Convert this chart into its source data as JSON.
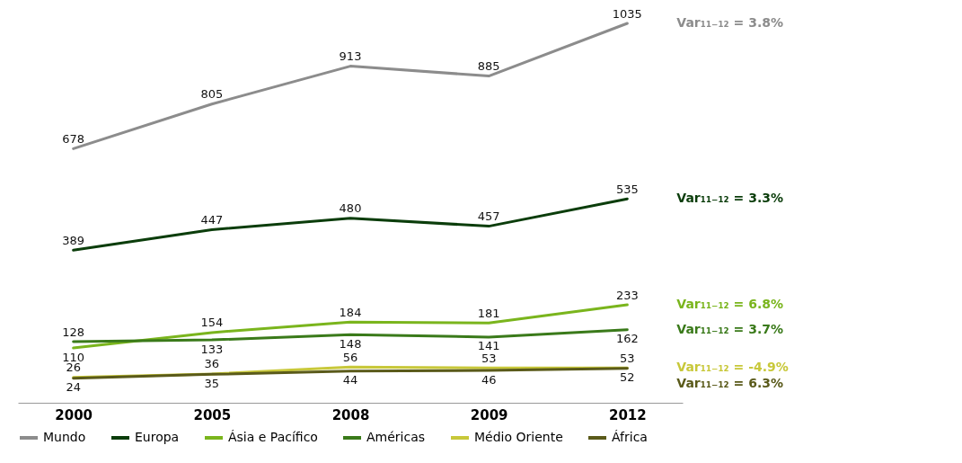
{
  "chart_data": {
    "type": "line",
    "categories": [
      "2000",
      "2005",
      "2008",
      "2009",
      "2012"
    ],
    "series": [
      {
        "name": "Mundo",
        "color": "#8c8c8c",
        "values": [
          678,
          805,
          913,
          885,
          1035
        ]
      },
      {
        "name": "Europa",
        "color": "#0b3d0b",
        "values": [
          389,
          447,
          480,
          457,
          535
        ]
      },
      {
        "name": "Ásia e Pacífico",
        "color": "#7ab51d",
        "values": [
          110,
          154,
          184,
          181,
          233
        ]
      },
      {
        "name": "Américas",
        "color": "#3a7a1a",
        "values": [
          128,
          133,
          148,
          141,
          162
        ]
      },
      {
        "name": "Médio Oriente",
        "color": "#c8c83a",
        "values": [
          26,
          36,
          56,
          53,
          53
        ]
      },
      {
        "name": "África",
        "color": "#5a5a1a",
        "values": [
          24,
          35,
          44,
          46,
          52
        ]
      }
    ],
    "annotations": [
      "Var₁₁₋₁₂ = 3.8%",
      "Var₁₁₋₁₂ = 3.3%",
      "Var₁₁₋₁₂ = 6.8%",
      "Var₁₁₋₁₂ = 3.7%",
      "Var₁₁₋₁₂ = -4.9%",
      "Var₁₁₋₁₂ = 6.3%"
    ],
    "data_labels": true,
    "legend": "bottom",
    "grid": false,
    "marker": "none",
    "line_style": "solid"
  }
}
